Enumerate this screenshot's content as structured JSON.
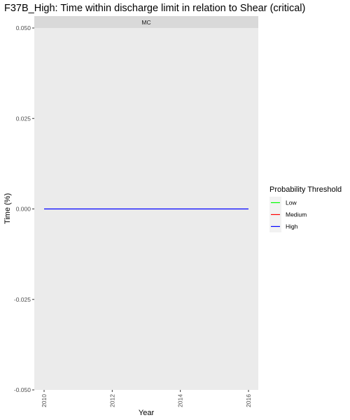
{
  "chart_data": {
    "type": "line",
    "title": "F37B_High: Time within discharge limit in relation to Shear (critical)",
    "facet": "MC",
    "xlabel": "Year",
    "ylabel": "Time (%)",
    "x_ticks": [
      "2010",
      "2012",
      "2014",
      "2016"
    ],
    "xlim": [
      2010,
      2016
    ],
    "y_ticks": [
      "0.050",
      "0.025",
      "0.000",
      "-0.025",
      "-0.050"
    ],
    "ylim": [
      -0.05,
      0.05
    ],
    "grid": false,
    "legend": {
      "title": "Probability Threshold",
      "position": "right",
      "entries": [
        {
          "label": "Low",
          "color": "#00ff00"
        },
        {
          "label": "Medium",
          "color": "#ff0000"
        },
        {
          "label": "High",
          "color": "#0000ff"
        }
      ]
    },
    "series": [
      {
        "name": "High",
        "color": "#0000ff",
        "x": [
          2010,
          2016
        ],
        "y": [
          0,
          0
        ]
      }
    ]
  }
}
